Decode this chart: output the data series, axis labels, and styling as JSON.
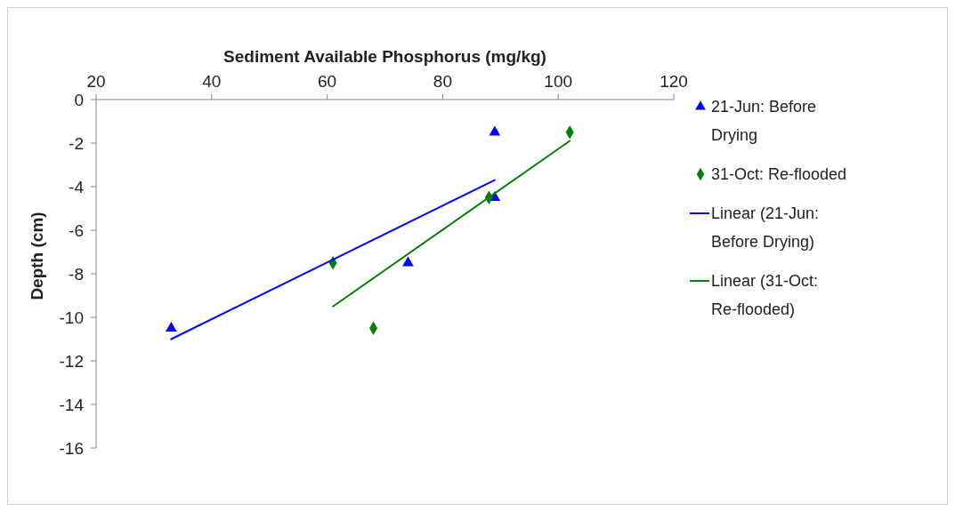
{
  "chart_data": {
    "type": "scatter",
    "xlabel": "Sediment Available Phosphorus (mg/kg)",
    "ylabel": "Depth (cm)",
    "xlim": [
      20,
      120
    ],
    "xticks": [
      20,
      40,
      60,
      80,
      100,
      120
    ],
    "ylim": [
      -16,
      0
    ],
    "yticks": [
      -16,
      -14,
      -12,
      -10,
      -8,
      -6,
      -4,
      -2,
      0
    ],
    "grid": false,
    "legend": "right",
    "series": [
      {
        "name": "21-Jun: Before Drying",
        "marker": "triangle",
        "color": "#0000ff",
        "x": [
          89,
          89,
          74,
          33
        ],
        "values": [
          -1.5,
          -4.5,
          -7.5,
          -10.5
        ]
      },
      {
        "name": "31-Oct: Re-flooded",
        "marker": "diamond",
        "color": "#008000",
        "x": [
          102,
          88,
          61,
          68
        ],
        "values": [
          -1.5,
          -4.5,
          -7.5,
          -10.5
        ]
      },
      {
        "name": "Linear (21-Jun: Before Drying)",
        "type": "line",
        "marker": "none",
        "color": "#0000ff",
        "x": [
          33,
          89
        ],
        "values": [
          -11.0,
          -3.7
        ]
      },
      {
        "name": "Linear (31-Oct: Re-flooded)",
        "type": "line",
        "marker": "none",
        "color": "#008000",
        "x": [
          61,
          102
        ],
        "values": [
          -9.5,
          -1.9
        ]
      }
    ]
  }
}
